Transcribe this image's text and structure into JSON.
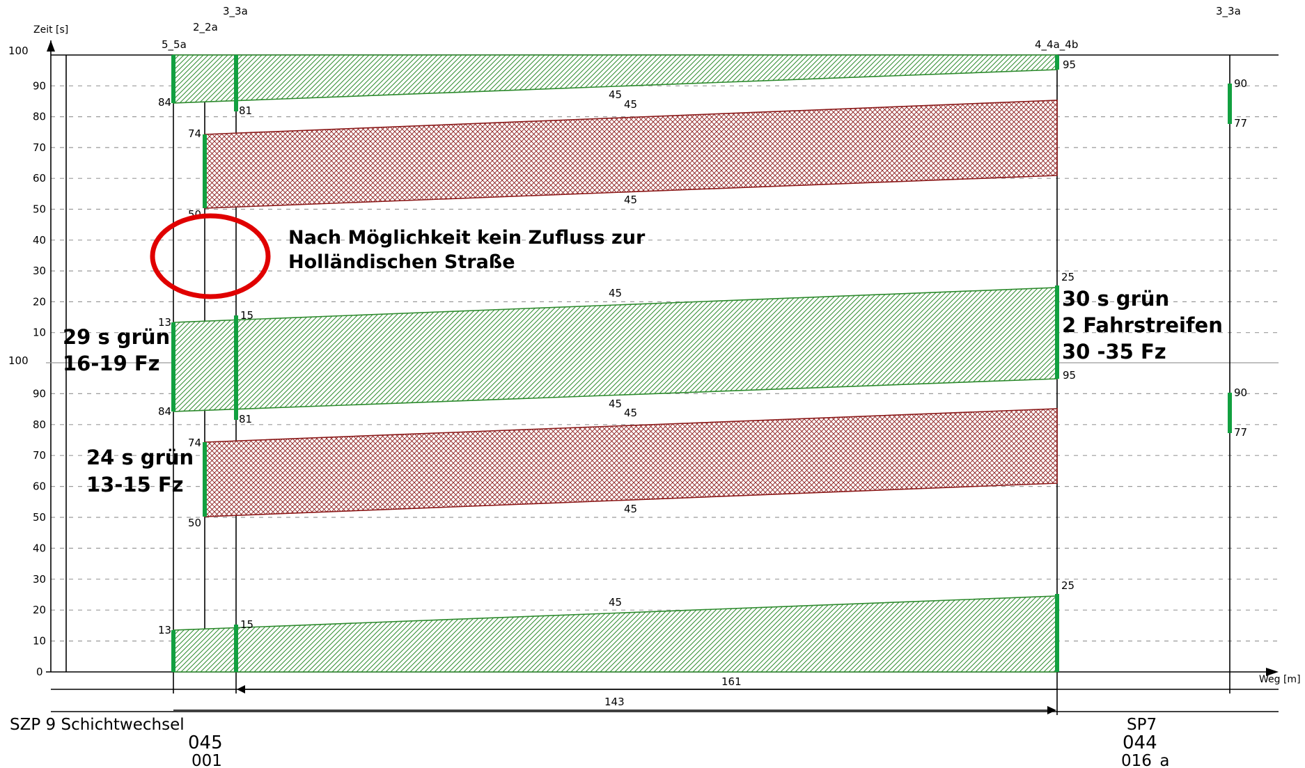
{
  "axes": {
    "y_label": "Zeit [s]",
    "x_label": "Weg [m]",
    "y_ticks_upper": [
      "100",
      "90",
      "80",
      "70",
      "60",
      "50",
      "40",
      "30",
      "20",
      "10"
    ],
    "y_ticks_lower": [
      "100",
      "90",
      "80",
      "70",
      "60",
      "50",
      "40",
      "30",
      "20",
      "10",
      "0"
    ]
  },
  "signals": {
    "s5": "5_5a",
    "s2": "2_2a",
    "s3": "3_3a",
    "s4": "4_4a_4b",
    "s3b": "3_3a"
  },
  "band_labels": {
    "u84": "84",
    "u81": "81",
    "u74": "74",
    "u50": "50",
    "u95": "95",
    "u45a": "45",
    "u45b": "45",
    "u45c": "45",
    "r90": "90",
    "r77": "77",
    "m13": "13",
    "m15": "15",
    "m25": "25",
    "m45": "45",
    "m95": "95",
    "l84": "84",
    "l81": "81",
    "l74": "74",
    "l50": "50",
    "l45a": "45",
    "l45b": "45",
    "l45c": "45",
    "r90b": "90",
    "r77b": "77",
    "b13": "13",
    "b15": "15",
    "b25": "25",
    "b45": "45"
  },
  "annotations": {
    "note_line1": "Nach Möglichkeit kein Zufluss zur",
    "note_line2": "Holländischen Straße",
    "left1_line1": "29 s grün",
    "left1_line2": "16-19 Fz",
    "left2_line1": "24 s grün",
    "left2_line1b": "",
    "left2_line2": "13-15 Fz",
    "right_line1": "30 s grün",
    "right_line2": "2 Fahrstreifen",
    "right_line3": "30 -35 Fz"
  },
  "distances": {
    "d161": "161",
    "d143": "143"
  },
  "footer": {
    "left_title": "SZP 9 Schichtwechsel",
    "left_id1": "045",
    "left_id2": "001",
    "right_title": "SP7",
    "right_id1": "044",
    "right_id2": "016_a"
  },
  "colors": {
    "green_phase": "#12a040",
    "green_band": "#2d8a2d",
    "red_band": "#8b1a1a",
    "circle": "#e00000"
  }
}
